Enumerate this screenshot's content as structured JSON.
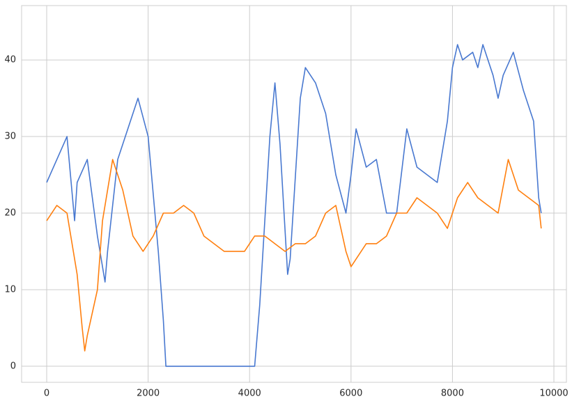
{
  "chart_data": {
    "type": "line",
    "xlim": [
      -495,
      10247
    ],
    "ylim": [
      -2.1,
      47.1
    ],
    "xticks": [
      0,
      2000,
      4000,
      6000,
      8000,
      10000
    ],
    "yticks": [
      0,
      10,
      20,
      30,
      40
    ],
    "grid": true,
    "series": [
      {
        "color": "#4878d0",
        "x": [
          0,
          200,
          400,
          550,
          600,
          800,
          1000,
          1100,
          1150,
          1200,
          1400,
          1600,
          1800,
          2000,
          2200,
          2300,
          2350,
          2400,
          4100,
          4200,
          4400,
          4500,
          4600,
          4750,
          4800,
          5000,
          5100,
          5300,
          5500,
          5700,
          5900,
          6000,
          6100,
          6300,
          6500,
          6700,
          6900,
          7100,
          7300,
          7500,
          7700,
          7900,
          8000,
          8100,
          8200,
          8400,
          8500,
          8600,
          8800,
          8900,
          9000,
          9200,
          9400,
          9600,
          9700,
          9750
        ],
        "values": [
          24,
          27,
          30,
          19,
          24,
          27,
          17,
          13,
          11,
          15,
          27,
          31,
          35,
          30,
          15,
          6,
          0,
          0,
          0,
          8,
          30,
          37,
          29,
          12,
          14,
          35,
          39,
          37,
          33,
          25,
          20,
          25,
          31,
          26,
          27,
          20,
          20,
          31,
          26,
          25,
          24,
          32,
          39,
          42,
          40,
          41,
          39,
          42,
          38,
          35,
          38,
          41,
          36,
          32,
          22,
          20
        ]
      },
      {
        "color": "#ff7f0e",
        "x": [
          0,
          200,
          400,
          600,
          700,
          750,
          800,
          1000,
          1100,
          1300,
          1500,
          1700,
          1900,
          2100,
          2300,
          2500,
          2700,
          2900,
          3100,
          3300,
          3500,
          3700,
          3900,
          4100,
          4300,
          4500,
          4700,
          4900,
          5100,
          5300,
          5500,
          5700,
          5900,
          6000,
          6100,
          6300,
          6500,
          6700,
          6900,
          7100,
          7300,
          7500,
          7700,
          7900,
          8100,
          8300,
          8500,
          8700,
          8900,
          9100,
          9300,
          9500,
          9700,
          9750
        ],
        "values": [
          19,
          21,
          20,
          12,
          5,
          2,
          4,
          10,
          19,
          27,
          23,
          17,
          15,
          17,
          20,
          20,
          21,
          20,
          17,
          16,
          15,
          15,
          15,
          17,
          17,
          16,
          15,
          16,
          16,
          17,
          20,
          21,
          15,
          13,
          14,
          16,
          16,
          17,
          20,
          20,
          22,
          21,
          20,
          18,
          22,
          24,
          22,
          21,
          20,
          27,
          23,
          22,
          21,
          18
        ]
      }
    ]
  }
}
